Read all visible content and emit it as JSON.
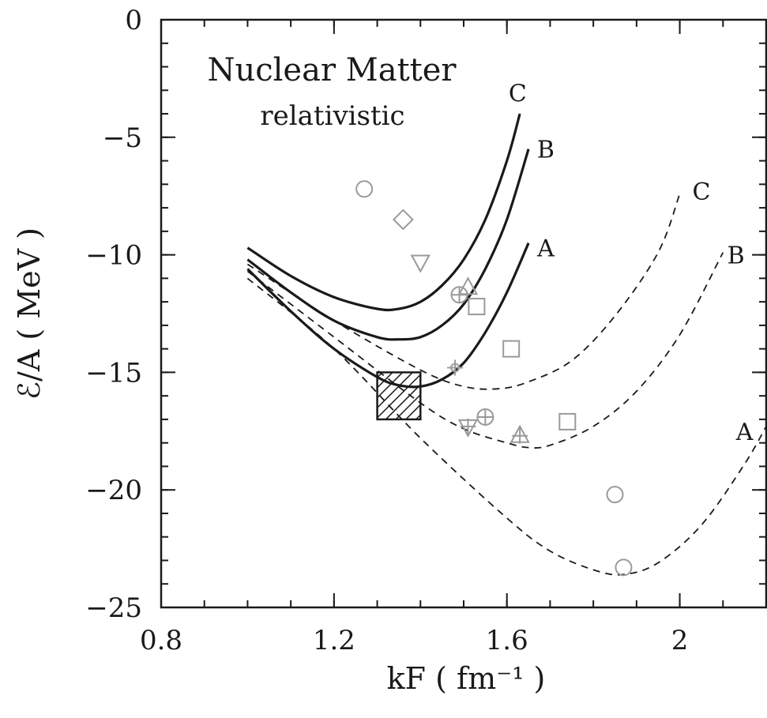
{
  "chart_data": {
    "type": "line",
    "title": "Nuclear Matter",
    "subtitle": "relativistic",
    "xlabel": "kF ( fm⁻¹ )",
    "ylabel": "ℰ/A ( MeV )",
    "xlim": [
      0.8,
      2.2
    ],
    "ylim": [
      -25,
      0
    ],
    "x_ticks": [
      "0.8",
      "1.2",
      "1.6",
      "2"
    ],
    "y_ticks": [
      "0",
      "-5",
      "-10",
      "-15",
      "-20",
      "-25"
    ],
    "grid": false,
    "series": [
      {
        "name": "A",
        "style": "solid",
        "x": [
          1.0,
          1.1,
          1.2,
          1.3,
          1.35,
          1.4,
          1.45,
          1.5,
          1.55,
          1.6,
          1.65
        ],
        "y": [
          -10.6,
          -12.4,
          -14.0,
          -15.2,
          -15.55,
          -15.6,
          -15.3,
          -14.6,
          -13.3,
          -11.6,
          -9.5
        ]
      },
      {
        "name": "B",
        "style": "solid",
        "x": [
          1.0,
          1.1,
          1.2,
          1.3,
          1.35,
          1.4,
          1.45,
          1.5,
          1.55,
          1.6,
          1.65
        ],
        "y": [
          -10.2,
          -11.6,
          -12.8,
          -13.5,
          -13.6,
          -13.5,
          -13.0,
          -12.1,
          -10.6,
          -8.5,
          -5.5
        ]
      },
      {
        "name": "C",
        "style": "solid",
        "x": [
          1.0,
          1.1,
          1.2,
          1.3,
          1.35,
          1.4,
          1.45,
          1.5,
          1.55,
          1.6,
          1.63
        ],
        "y": [
          -9.7,
          -10.9,
          -11.8,
          -12.3,
          -12.3,
          -12.0,
          -11.3,
          -10.2,
          -8.5,
          -6.0,
          -4.0
        ]
      },
      {
        "name": "A",
        "style": "dashed",
        "x": [
          1.0,
          1.2,
          1.4,
          1.6,
          1.7,
          1.8,
          1.87,
          1.95,
          2.05,
          2.15,
          2.2
        ],
        "y": [
          -11.0,
          -14.0,
          -17.8,
          -21.2,
          -22.6,
          -23.4,
          -23.6,
          -23.1,
          -21.5,
          -18.9,
          -17.3
        ]
      },
      {
        "name": "B",
        "style": "dashed",
        "x": [
          1.0,
          1.2,
          1.4,
          1.5,
          1.6,
          1.65,
          1.7,
          1.8,
          1.9,
          2.0,
          2.1
        ],
        "y": [
          -10.7,
          -13.5,
          -16.3,
          -17.4,
          -18.0,
          -18.2,
          -18.1,
          -17.3,
          -15.8,
          -13.4,
          -9.9
        ]
      },
      {
        "name": "C",
        "style": "dashed",
        "x": [
          1.0,
          1.2,
          1.4,
          1.5,
          1.58,
          1.65,
          1.75,
          1.85,
          1.95,
          2.0
        ],
        "y": [
          -10.4,
          -12.8,
          -14.9,
          -15.6,
          -15.7,
          -15.4,
          -14.5,
          -12.6,
          -9.9,
          -7.4
        ]
      }
    ],
    "curve_labels": [
      {
        "text": "C",
        "x": 1.625,
        "y": -3.1,
        "style": "solid"
      },
      {
        "text": "B",
        "x": 1.69,
        "y": -5.5,
        "style": "solid"
      },
      {
        "text": "A",
        "x": 1.69,
        "y": -9.7,
        "style": "solid"
      },
      {
        "text": "C",
        "x": 2.05,
        "y": -7.3,
        "style": "dashed"
      },
      {
        "text": "B",
        "x": 2.13,
        "y": -10.0,
        "style": "dashed"
      },
      {
        "text": "A",
        "x": 2.15,
        "y": -17.5,
        "style": "dashed"
      }
    ],
    "markers": [
      {
        "shape": "circle",
        "x": 1.27,
        "y": -7.2
      },
      {
        "shape": "diamond",
        "x": 1.36,
        "y": -8.5
      },
      {
        "shape": "triangle-down",
        "x": 1.4,
        "y": -10.3
      },
      {
        "shape": "triangle-up",
        "x": 1.51,
        "y": -11.4
      },
      {
        "shape": "circle-cross",
        "x": 1.49,
        "y": -11.7
      },
      {
        "shape": "square",
        "x": 1.53,
        "y": -12.2
      },
      {
        "shape": "square",
        "x": 1.61,
        "y": -14.0
      },
      {
        "shape": "plus",
        "x": 1.48,
        "y": -14.8
      },
      {
        "shape": "triangle-down-cross",
        "x": 1.51,
        "y": -17.3
      },
      {
        "shape": "circle-cross",
        "x": 1.55,
        "y": -16.9
      },
      {
        "shape": "triangle-up-cross",
        "x": 1.63,
        "y": -17.7
      },
      {
        "shape": "square",
        "x": 1.74,
        "y": -17.1
      },
      {
        "shape": "circle",
        "x": 1.85,
        "y": -20.2
      },
      {
        "shape": "circle",
        "x": 1.87,
        "y": -23.3
      }
    ],
    "empirical_box": {
      "x": [
        1.3,
        1.4
      ],
      "y": [
        -17.0,
        -15.0
      ],
      "fill": "hatched"
    }
  }
}
